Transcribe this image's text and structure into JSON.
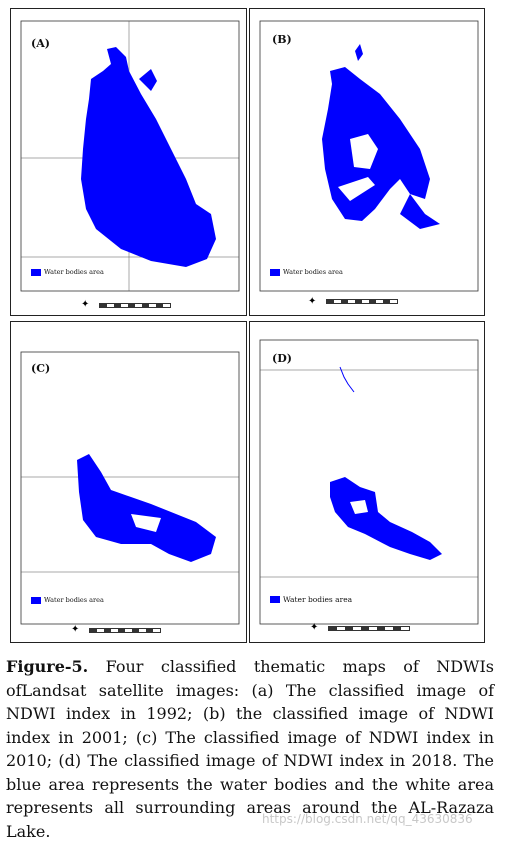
{
  "panels": [
    {
      "label": "(A)",
      "legend": "Water bodies area"
    },
    {
      "label": "(B)",
      "legend": "Water bodies area"
    },
    {
      "label": "(C)",
      "legend": "Water bodies area"
    },
    {
      "label": "(D)",
      "legend": "Water bodies area"
    }
  ],
  "colors": {
    "water": "#0000ff",
    "frame": "#222222",
    "background": "#ffffff"
  },
  "icons": {
    "north_arrow": "compass-rose-icon",
    "scale_bar": "scale-bar-icon"
  },
  "caption": {
    "lead": "Figure-5.",
    "text": " Four classified thematic maps of NDWIs ofLandsat satellite images: (a) The classified image of NDWI index in 1992; (b) the classified image of NDWI index in 2001; (c) The classified image of NDWI index in 2010; (d) The classified image of NDWI index in 2018. The blue area represents the water bodies and the white area represents all surrounding areas around the AL-Razaza Lake."
  },
  "watermark": "https://blog.csdn.net/qq_43630836"
}
